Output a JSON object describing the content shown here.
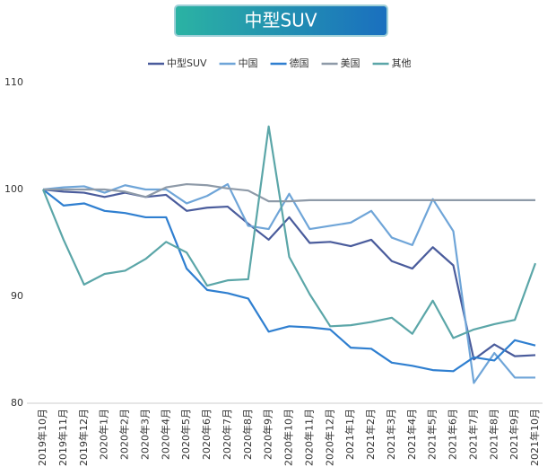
{
  "chart_data": {
    "type": "line",
    "title": "中型SUV",
    "categories": [
      "2019年10月",
      "2019年11月",
      "2019年12月",
      "2020年1月",
      "2020年2月",
      "2020年3月",
      "2020年4月",
      "2020年5月",
      "2020年6月",
      "2020年7月",
      "2020年8月",
      "2020年9月",
      "2020年10月",
      "2020年11月",
      "2020年12月",
      "2021年1月",
      "2021年2月",
      "2021年3月",
      "2021年4月",
      "2021年5月",
      "2021年6月",
      "2021年7月",
      "2021年8月",
      "2021年9月",
      "2021年10月"
    ],
    "series": [
      {
        "name": "中型SUV",
        "color": "#4a5c9c",
        "values": [
          100,
          99.8,
          99.7,
          99.3,
          99.7,
          99.3,
          99.5,
          98.0,
          98.3,
          98.4,
          96.8,
          95.3,
          97.4,
          95.0,
          95.1,
          94.7,
          95.3,
          93.3,
          92.6,
          94.6,
          92.9,
          84.1,
          85.5,
          84.4,
          84.5
        ]
      },
      {
        "name": "中国",
        "color": "#6fa5d8",
        "values": [
          100,
          100.2,
          100.3,
          99.7,
          100.4,
          100,
          100,
          98.7,
          99.4,
          100.5,
          96.6,
          96.3,
          99.6,
          96.3,
          96.6,
          96.9,
          98.0,
          95.5,
          94.8,
          99.1,
          96.1,
          81.9,
          84.7,
          82.4,
          82.4
        ]
      },
      {
        "name": "德国",
        "color": "#2f7fd0",
        "values": [
          100,
          98.5,
          98.7,
          98.0,
          97.8,
          97.4,
          97.4,
          92.6,
          90.6,
          90.3,
          89.8,
          86.7,
          87.2,
          87.1,
          86.9,
          85.2,
          85.1,
          83.8,
          83.5,
          83.1,
          83.0,
          84.3,
          84.0,
          85.9,
          85.4
        ]
      },
      {
        "name": "美国",
        "color": "#8e9aa8",
        "values": [
          100,
          100,
          100,
          100,
          99.8,
          99.3,
          100.2,
          100.5,
          100.4,
          100.1,
          99.9,
          98.9,
          98.9,
          99.0,
          99.0,
          99.0,
          99.0,
          99.0,
          99.0,
          99.0,
          99.0,
          99.0,
          99.0,
          99.0,
          99.0
        ]
      },
      {
        "name": "其他",
        "color": "#5ba6a8",
        "values": [
          100,
          95.3,
          91.1,
          92.1,
          92.4,
          93.5,
          95.1,
          94.1,
          91.0,
          91.5,
          91.6,
          105.9,
          93.7,
          90.2,
          87.2,
          87.3,
          87.6,
          88.0,
          86.5,
          89.6,
          86.1,
          86.9,
          87.4,
          87.8,
          93.1
        ]
      }
    ],
    "ylim": [
      80,
      110
    ],
    "yticks": [
      80,
      90,
      100,
      110
    ],
    "grid": false
  }
}
